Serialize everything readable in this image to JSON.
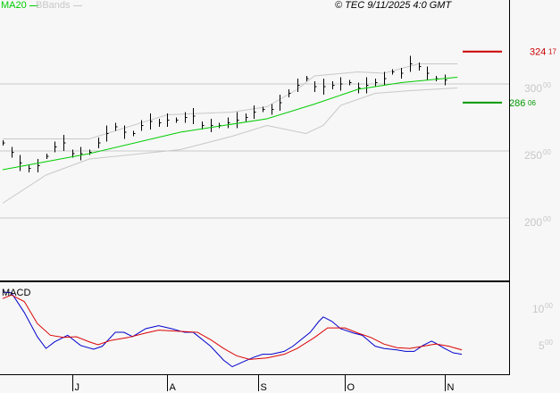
{
  "header": {
    "legend_ma": "MA20",
    "legend_bb": "BBands",
    "copyright": "© TEC 9/11/2025 4:0 GMT"
  },
  "colors": {
    "ma": "#00cc00",
    "bands": "#c8c8c8",
    "resistance": "#cc0000",
    "support": "#009900",
    "macd": "#0000cc",
    "signal": "#dd0000",
    "bars": "#000000"
  },
  "chart_data": [
    {
      "type": "line",
      "panel": "price",
      "ylim": [
        180,
        340
      ],
      "yticks": [
        {
          "value": 300,
          "label": "300",
          "dec": "00"
        },
        {
          "value": 250,
          "label": "250",
          "dec": "00"
        },
        {
          "value": 200,
          "label": "200",
          "dec": "00"
        }
      ],
      "levels": [
        {
          "value": 324.17,
          "label": "324",
          "dec": "17",
          "kind": "resistance"
        },
        {
          "value": 286.06,
          "label": "286",
          "dec": "06",
          "kind": "support"
        }
      ],
      "close": [
        256,
        249,
        241,
        237,
        239,
        246,
        253,
        256,
        248,
        248,
        249,
        256,
        263,
        268,
        264,
        263,
        269,
        272,
        271,
        273,
        273,
        275,
        276,
        269,
        269,
        269,
        271,
        273,
        275,
        279,
        281,
        281,
        286,
        293,
        299,
        304,
        298,
        298,
        299,
        300,
        301,
        297,
        299,
        301,
        304,
        309,
        308,
        315,
        313,
        308,
        304,
        303
      ],
      "close_step_days": 2,
      "ma20": [
        [
          0,
          236
        ],
        [
          20,
          248
        ],
        [
          41,
          264
        ],
        [
          61,
          274
        ],
        [
          72,
          285
        ],
        [
          82,
          296
        ],
        [
          92,
          301
        ],
        [
          105,
          305
        ]
      ],
      "bb_upper": [
        [
          0,
          259
        ],
        [
          20,
          259
        ],
        [
          38,
          277
        ],
        [
          53,
          279
        ],
        [
          61,
          283
        ],
        [
          68,
          296
        ],
        [
          72,
          306
        ],
        [
          82,
          309
        ],
        [
          88,
          308
        ],
        [
          96,
          315
        ],
        [
          105,
          315
        ]
      ],
      "bb_lower": [
        [
          0,
          211
        ],
        [
          10,
          232
        ],
        [
          20,
          244
        ],
        [
          41,
          251
        ],
        [
          53,
          261
        ],
        [
          61,
          269
        ],
        [
          70,
          263
        ],
        [
          74,
          269
        ],
        [
          78,
          284
        ],
        [
          86,
          293
        ],
        [
          94,
          295
        ],
        [
          105,
          297
        ]
      ]
    },
    {
      "type": "line",
      "panel": "macd",
      "title": "MACD",
      "ylim": [
        0,
        14
      ],
      "yticks": [
        {
          "value": 10,
          "label": "10",
          "dec": "00"
        },
        {
          "value": 5,
          "label": "5",
          "dec": "00"
        }
      ],
      "series": [
        {
          "key": "macd",
          "points": [
            [
              0,
              12.2
            ],
            [
              2,
              12.1
            ],
            [
              5,
              9.4
            ],
            [
              8,
              6.1
            ],
            [
              10,
              4.5
            ],
            [
              12,
              5.4
            ],
            [
              15,
              6.3
            ],
            [
              18,
              4.9
            ],
            [
              21,
              4.4
            ],
            [
              23,
              4.8
            ],
            [
              26,
              6.7
            ],
            [
              28,
              6.7
            ],
            [
              30,
              6.1
            ],
            [
              33,
              7.2
            ],
            [
              36,
              7.6
            ],
            [
              39,
              7.2
            ],
            [
              42,
              6.7
            ],
            [
              44,
              6.7
            ],
            [
              48,
              4.8
            ],
            [
              51,
              2.9
            ],
            [
              53,
              2.0
            ],
            [
              56,
              2.8
            ],
            [
              58,
              3.3
            ],
            [
              60,
              3.7
            ],
            [
              62,
              3.7
            ],
            [
              65,
              4.1
            ],
            [
              67,
              4.8
            ],
            [
              71,
              6.7
            ],
            [
              73,
              8.2
            ],
            [
              74,
              8.8
            ],
            [
              76,
              8.2
            ],
            [
              78,
              7.2
            ],
            [
              81,
              6.6
            ],
            [
              83,
              6.3
            ],
            [
              86,
              4.8
            ],
            [
              88,
              4.5
            ],
            [
              91,
              4.3
            ],
            [
              93,
              4.1
            ],
            [
              95,
              4.1
            ],
            [
              97,
              4.9
            ],
            [
              99,
              5.5
            ],
            [
              100,
              5.2
            ],
            [
              102,
              4.5
            ],
            [
              104,
              3.9
            ],
            [
              106,
              3.7
            ]
          ]
        },
        {
          "key": "signal",
          "points": [
            [
              0,
              11.3
            ],
            [
              2,
              11.8
            ],
            [
              5,
              10.9
            ],
            [
              8,
              7.9
            ],
            [
              11,
              6.3
            ],
            [
              14,
              6.0
            ],
            [
              17,
              6.1
            ],
            [
              20,
              5.4
            ],
            [
              22,
              5.0
            ],
            [
              25,
              5.6
            ],
            [
              29,
              6.0
            ],
            [
              33,
              6.6
            ],
            [
              36,
              7.0
            ],
            [
              42,
              6.8
            ],
            [
              45,
              6.7
            ],
            [
              48,
              5.7
            ],
            [
              51,
              4.5
            ],
            [
              54,
              3.5
            ],
            [
              57,
              3.0
            ],
            [
              61,
              3.2
            ],
            [
              65,
              3.7
            ],
            [
              68,
              4.5
            ],
            [
              72,
              6.0
            ],
            [
              75,
              7.3
            ],
            [
              79,
              7.3
            ],
            [
              82,
              6.6
            ],
            [
              85,
              6.0
            ],
            [
              88,
              5.1
            ],
            [
              91,
              4.6
            ],
            [
              94,
              4.5
            ],
            [
              97,
              4.8
            ],
            [
              100,
              5.1
            ],
            [
              103,
              4.8
            ],
            [
              106,
              4.3
            ]
          ]
        }
      ]
    },
    {
      "type": "axis",
      "xticks": [
        {
          "day": 16,
          "label": "J"
        },
        {
          "day": 38,
          "label": "A"
        },
        {
          "day": 59,
          "label": "S"
        },
        {
          "day": 79,
          "label": "O"
        },
        {
          "day": 102,
          "label": "N"
        }
      ]
    }
  ]
}
